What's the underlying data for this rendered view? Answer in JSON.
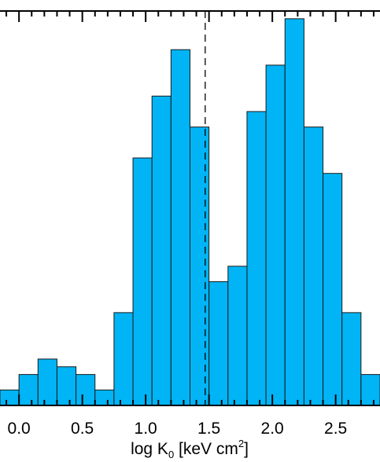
{
  "chart_data": {
    "type": "bar",
    "histogram": true,
    "xlabel": {
      "prefix": "log K",
      "subscript": "0",
      "middle": " [keV cm",
      "superscript": "2",
      "suffix": "]"
    },
    "xlim": [
      -0.15,
      2.85
    ],
    "ylim": [
      0,
      25.5
    ],
    "x_ticks": [
      0.0,
      0.5,
      1.0,
      1.5,
      2.0,
      2.5
    ],
    "x_tick_labels": [
      "0.0",
      "0.5",
      "1.0",
      "1.5",
      "2.0",
      "2.5"
    ],
    "bin_width": 0.15,
    "bins": [
      {
        "x0": -0.15,
        "count": 1
      },
      {
        "x0": 0.0,
        "count": 2
      },
      {
        "x0": 0.15,
        "count": 3
      },
      {
        "x0": 0.3,
        "count": 2.5
      },
      {
        "x0": 0.45,
        "count": 2
      },
      {
        "x0": 0.6,
        "count": 1
      },
      {
        "x0": 0.75,
        "count": 6
      },
      {
        "x0": 0.9,
        "count": 16
      },
      {
        "x0": 1.05,
        "count": 20
      },
      {
        "x0": 1.2,
        "count": 23
      },
      {
        "x0": 1.35,
        "count": 18
      },
      {
        "x0": 1.5,
        "count": 8
      },
      {
        "x0": 1.65,
        "count": 9
      },
      {
        "x0": 1.8,
        "count": 19
      },
      {
        "x0": 1.95,
        "count": 22
      },
      {
        "x0": 2.1,
        "count": 25
      },
      {
        "x0": 2.25,
        "count": 18
      },
      {
        "x0": 2.4,
        "count": 15
      },
      {
        "x0": 2.55,
        "count": 6
      },
      {
        "x0": 2.7,
        "count": 2
      }
    ],
    "vline_x": 1.47,
    "vline_style": "dashed",
    "grid": false,
    "colors": {
      "bar_fill": "#00b4f5",
      "bar_edge": "#1a1a1a",
      "axis": "#000000",
      "vline": "#000000"
    }
  }
}
